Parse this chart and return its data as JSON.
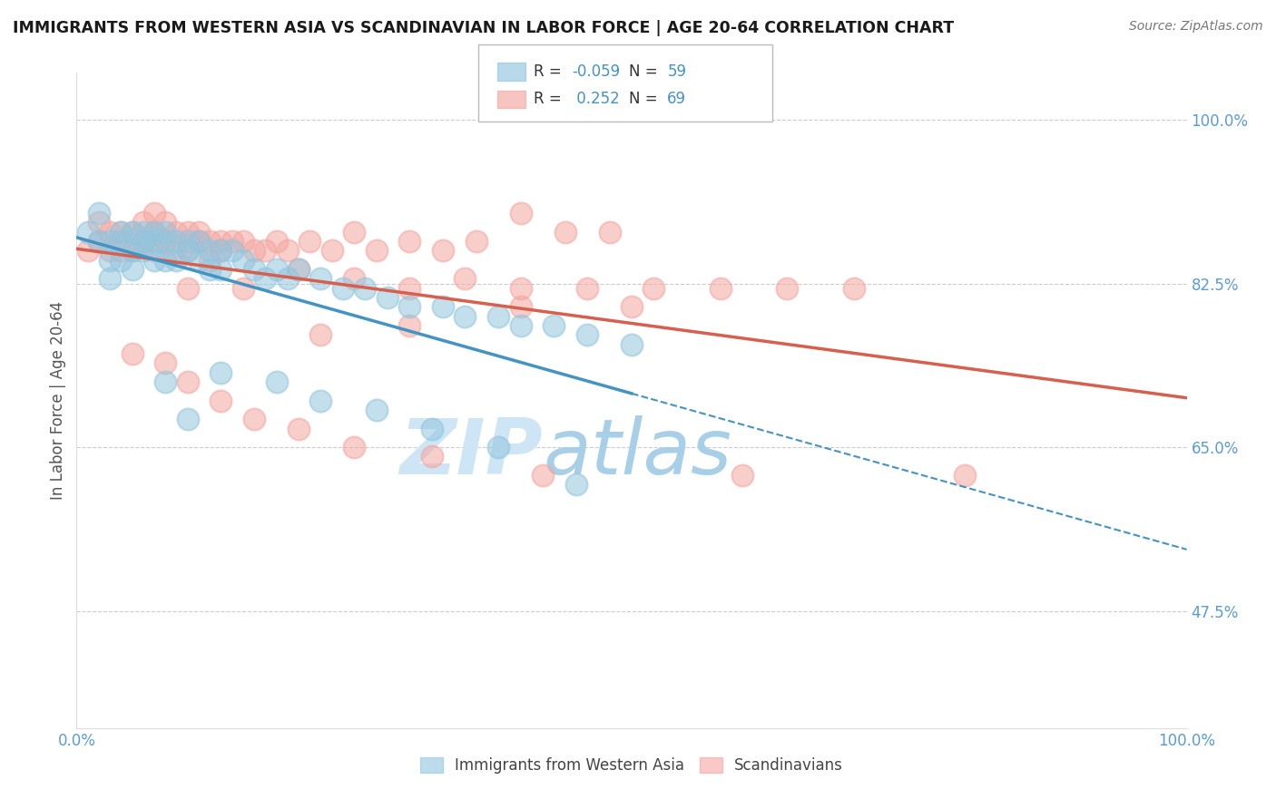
{
  "title": "IMMIGRANTS FROM WESTERN ASIA VS SCANDINAVIAN IN LABOR FORCE | AGE 20-64 CORRELATION CHART",
  "source": "Source: ZipAtlas.com",
  "ylabel": "In Labor Force | Age 20-64",
  "xlim": [
    0.0,
    1.0
  ],
  "ylim": [
    0.35,
    1.05
  ],
  "ytick_vals": [
    0.475,
    0.65,
    0.825,
    1.0
  ],
  "ytick_labels": [
    "47.5%",
    "65.0%",
    "82.5%",
    "100.0%"
  ],
  "xtick_vals": [
    0.0,
    0.25,
    0.5,
    0.75,
    1.0
  ],
  "xtick_labels": [
    "0.0%",
    "",
    "",
    "",
    "100.0%"
  ],
  "legend_labels": [
    "Immigrants from Western Asia",
    "Scandinavians"
  ],
  "legend_r": [
    "-0.059",
    "0.252"
  ],
  "legend_n": [
    "59",
    "69"
  ],
  "blue_color": "#92c5de",
  "pink_color": "#f4a6a0",
  "blue_line_color": "#4393c3",
  "pink_line_color": "#d6604d",
  "tick_color": "#5b9bd5",
  "bg_color": "#ffffff",
  "grid_color": "#cccccc",
  "watermark_color": "#cde5f5",
  "blue_x": [
    0.01,
    0.02,
    0.02,
    0.03,
    0.03,
    0.03,
    0.04,
    0.04,
    0.04,
    0.05,
    0.05,
    0.05,
    0.06,
    0.06,
    0.06,
    0.07,
    0.07,
    0.07,
    0.08,
    0.08,
    0.08,
    0.09,
    0.09,
    0.1,
    0.1,
    0.11,
    0.11,
    0.12,
    0.12,
    0.13,
    0.13,
    0.14,
    0.15,
    0.16,
    0.17,
    0.18,
    0.19,
    0.2,
    0.22,
    0.24,
    0.26,
    0.28,
    0.3,
    0.33,
    0.35,
    0.38,
    0.4,
    0.43,
    0.46,
    0.5,
    0.08,
    0.1,
    0.13,
    0.18,
    0.22,
    0.27,
    0.32,
    0.38,
    0.45
  ],
  "blue_y": [
    0.88,
    0.9,
    0.87,
    0.87,
    0.85,
    0.83,
    0.88,
    0.87,
    0.85,
    0.88,
    0.86,
    0.84,
    0.88,
    0.87,
    0.86,
    0.88,
    0.87,
    0.85,
    0.88,
    0.87,
    0.85,
    0.87,
    0.85,
    0.87,
    0.86,
    0.87,
    0.85,
    0.86,
    0.84,
    0.86,
    0.84,
    0.86,
    0.85,
    0.84,
    0.83,
    0.84,
    0.83,
    0.84,
    0.83,
    0.82,
    0.82,
    0.81,
    0.8,
    0.8,
    0.79,
    0.79,
    0.78,
    0.78,
    0.77,
    0.76,
    0.72,
    0.68,
    0.73,
    0.72,
    0.7,
    0.69,
    0.67,
    0.65,
    0.61
  ],
  "pink_x": [
    0.01,
    0.02,
    0.02,
    0.03,
    0.03,
    0.04,
    0.04,
    0.05,
    0.05,
    0.06,
    0.06,
    0.07,
    0.07,
    0.07,
    0.08,
    0.08,
    0.09,
    0.09,
    0.1,
    0.1,
    0.11,
    0.11,
    0.12,
    0.12,
    0.13,
    0.13,
    0.14,
    0.15,
    0.16,
    0.17,
    0.18,
    0.19,
    0.21,
    0.23,
    0.25,
    0.27,
    0.3,
    0.33,
    0.36,
    0.4,
    0.44,
    0.48,
    0.1,
    0.15,
    0.2,
    0.25,
    0.3,
    0.35,
    0.4,
    0.46,
    0.52,
    0.58,
    0.64,
    0.7,
    0.22,
    0.3,
    0.4,
    0.5,
    0.6,
    0.8,
    0.05,
    0.08,
    0.1,
    0.13,
    0.16,
    0.2,
    0.25,
    0.32,
    0.42
  ],
  "pink_y": [
    0.86,
    0.89,
    0.87,
    0.88,
    0.86,
    0.88,
    0.86,
    0.88,
    0.86,
    0.89,
    0.87,
    0.9,
    0.88,
    0.86,
    0.89,
    0.87,
    0.88,
    0.86,
    0.88,
    0.86,
    0.88,
    0.87,
    0.87,
    0.85,
    0.87,
    0.86,
    0.87,
    0.87,
    0.86,
    0.86,
    0.87,
    0.86,
    0.87,
    0.86,
    0.88,
    0.86,
    0.87,
    0.86,
    0.87,
    0.9,
    0.88,
    0.88,
    0.82,
    0.82,
    0.84,
    0.83,
    0.82,
    0.83,
    0.82,
    0.82,
    0.82,
    0.82,
    0.82,
    0.82,
    0.77,
    0.78,
    0.8,
    0.8,
    0.62,
    0.62,
    0.75,
    0.74,
    0.72,
    0.7,
    0.68,
    0.67,
    0.65,
    0.64,
    0.62
  ]
}
